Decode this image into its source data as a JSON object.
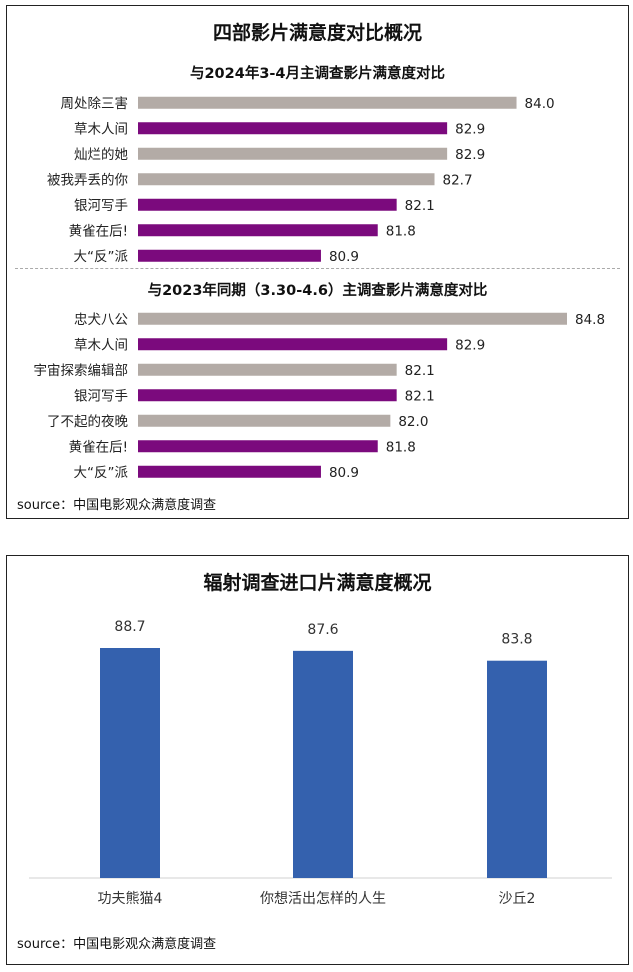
{
  "panel1": {
    "title": "四部影片满意度对比概况",
    "source": "source：中国电影观众满意度调查"
  },
  "panel2": {
    "title": "辐射调查进口片满意度概况",
    "source": "source：中国电影观众满意度调查"
  },
  "colors": {
    "purple": "#7b0a7d",
    "gray": "#b3aba6",
    "blue": "#3461ae"
  },
  "chart_data": [
    {
      "type": "bar",
      "orientation": "horizontal",
      "title": "与2024年3-4月主调查影片满意度对比",
      "categories": [
        "周处除三害",
        "草木人间",
        "灿烂的她",
        "被我弄丢的你",
        "银河写手",
        "黄雀在后!",
        "大“反”派"
      ],
      "values": [
        84.0,
        82.9,
        82.9,
        82.7,
        82.1,
        81.8,
        80.9
      ],
      "value_labels": [
        "84.0",
        "82.9",
        "82.9",
        "82.7",
        "82.1",
        "81.8",
        "80.9"
      ],
      "bar_colors": [
        "gray",
        "purple",
        "gray",
        "gray",
        "purple",
        "purple",
        "purple"
      ],
      "xlim": [
        78.0,
        84.8
      ]
    },
    {
      "type": "bar",
      "orientation": "horizontal",
      "title": "与2023年同期（3.30-4.6）主调查影片满意度对比",
      "categories": [
        "忠犬八公",
        "草木人间",
        "宇宙探索编辑部",
        "银河写手",
        "了不起的夜晚",
        "黄雀在后!",
        "大“反”派"
      ],
      "values": [
        84.8,
        82.9,
        82.1,
        82.1,
        82.0,
        81.8,
        80.9
      ],
      "value_labels": [
        "84.8",
        "82.9",
        "82.1",
        "82.1",
        "82.0",
        "81.8",
        "80.9"
      ],
      "bar_colors": [
        "gray",
        "purple",
        "gray",
        "purple",
        "gray",
        "purple",
        "purple"
      ],
      "xlim": [
        78.0,
        84.8
      ]
    },
    {
      "type": "bar",
      "orientation": "vertical",
      "title": "辐射调查进口片满意度概况",
      "categories": [
        "功夫熊猫4",
        "你想活出怎样的人生",
        "沙丘2"
      ],
      "values": [
        88.7,
        87.6,
        83.8
      ],
      "value_labels": [
        "88.7",
        "87.6",
        "83.8"
      ],
      "ylim": [
        0,
        88.7
      ]
    }
  ]
}
